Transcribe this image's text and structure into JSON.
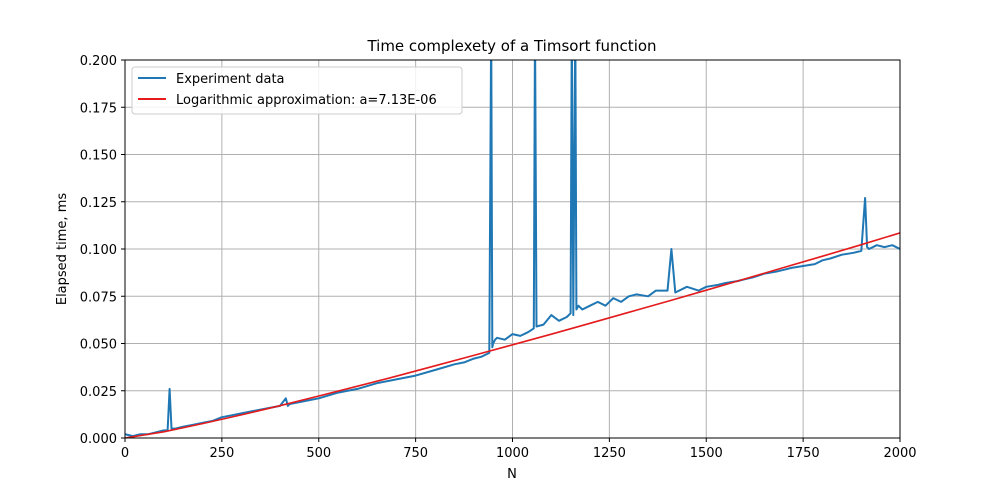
{
  "chart_data": {
    "type": "line",
    "title": "Time complexety of a Timsort function",
    "xlabel": "N",
    "ylabel": "Elapsed time, ms",
    "xlim": [
      0,
      2000
    ],
    "ylim": [
      0,
      0.2
    ],
    "x_ticks": [
      0,
      250,
      500,
      750,
      1000,
      1250,
      1500,
      1750,
      2000
    ],
    "y_ticks": [
      0.0,
      0.025,
      0.05,
      0.075,
      0.1,
      0.125,
      0.15,
      0.175,
      0.2
    ],
    "x_tick_labels": [
      "0",
      "250",
      "500",
      "750",
      "1000",
      "1250",
      "1500",
      "1750",
      "2000"
    ],
    "y_tick_labels": [
      "0.000",
      "0.025",
      "0.050",
      "0.075",
      "0.100",
      "0.125",
      "0.150",
      "0.175",
      "0.200"
    ],
    "grid": true,
    "legend_position": "top-left",
    "series": [
      {
        "name": "Experiment data",
        "color": "#1f77b4",
        "x": [
          0,
          20,
          40,
          60,
          80,
          100,
          110,
          115,
          120,
          130,
          150,
          175,
          200,
          225,
          250,
          275,
          300,
          350,
          400,
          415,
          420,
          425,
          450,
          500,
          550,
          600,
          650,
          700,
          750,
          800,
          850,
          875,
          900,
          920,
          940,
          945,
          948,
          950,
          955,
          960,
          980,
          1000,
          1020,
          1040,
          1055,
          1058,
          1062,
          1080,
          1100,
          1120,
          1140,
          1150,
          1153,
          1157,
          1162,
          1165,
          1170,
          1180,
          1200,
          1220,
          1240,
          1260,
          1280,
          1300,
          1320,
          1350,
          1370,
          1400,
          1410,
          1420,
          1450,
          1480,
          1500,
          1530,
          1550,
          1580,
          1600,
          1620,
          1650,
          1680,
          1700,
          1720,
          1750,
          1780,
          1800,
          1820,
          1850,
          1880,
          1900,
          1910,
          1915,
          1920,
          1940,
          1960,
          1980,
          2000
        ],
        "y": [
          0.002,
          0.001,
          0.002,
          0.002,
          0.003,
          0.004,
          0.004,
          0.026,
          0.005,
          0.005,
          0.006,
          0.007,
          0.008,
          0.009,
          0.011,
          0.012,
          0.013,
          0.015,
          0.017,
          0.021,
          0.017,
          0.018,
          0.019,
          0.021,
          0.024,
          0.026,
          0.029,
          0.031,
          0.033,
          0.036,
          0.039,
          0.04,
          0.042,
          0.043,
          0.045,
          0.22,
          0.048,
          0.05,
          0.052,
          0.053,
          0.052,
          0.055,
          0.054,
          0.056,
          0.058,
          0.22,
          0.059,
          0.06,
          0.065,
          0.062,
          0.064,
          0.066,
          0.22,
          0.065,
          0.22,
          0.068,
          0.07,
          0.068,
          0.07,
          0.072,
          0.07,
          0.074,
          0.072,
          0.075,
          0.076,
          0.075,
          0.078,
          0.078,
          0.1,
          0.077,
          0.08,
          0.078,
          0.08,
          0.081,
          0.082,
          0.083,
          0.084,
          0.085,
          0.087,
          0.088,
          0.089,
          0.09,
          0.091,
          0.092,
          0.094,
          0.095,
          0.097,
          0.098,
          0.099,
          0.127,
          0.101,
          0.1,
          0.102,
          0.101,
          0.102,
          0.1
        ]
      },
      {
        "name": "Logarithmic approximation: a=7.13E-06",
        "color": "#e41a1c",
        "x": [
          0,
          100,
          200,
          300,
          400,
          500,
          600,
          700,
          800,
          900,
          1000,
          1100,
          1200,
          1300,
          1400,
          1500,
          1600,
          1700,
          1800,
          1900,
          2000
        ],
        "y": [
          0.0,
          0.0033,
          0.0076,
          0.0122,
          0.0171,
          0.0222,
          0.0274,
          0.0327,
          0.0382,
          0.0437,
          0.0493,
          0.0549,
          0.0607,
          0.0665,
          0.0723,
          0.0782,
          0.0842,
          0.0902,
          0.0962,
          0.1023,
          0.1085
        ]
      }
    ]
  }
}
